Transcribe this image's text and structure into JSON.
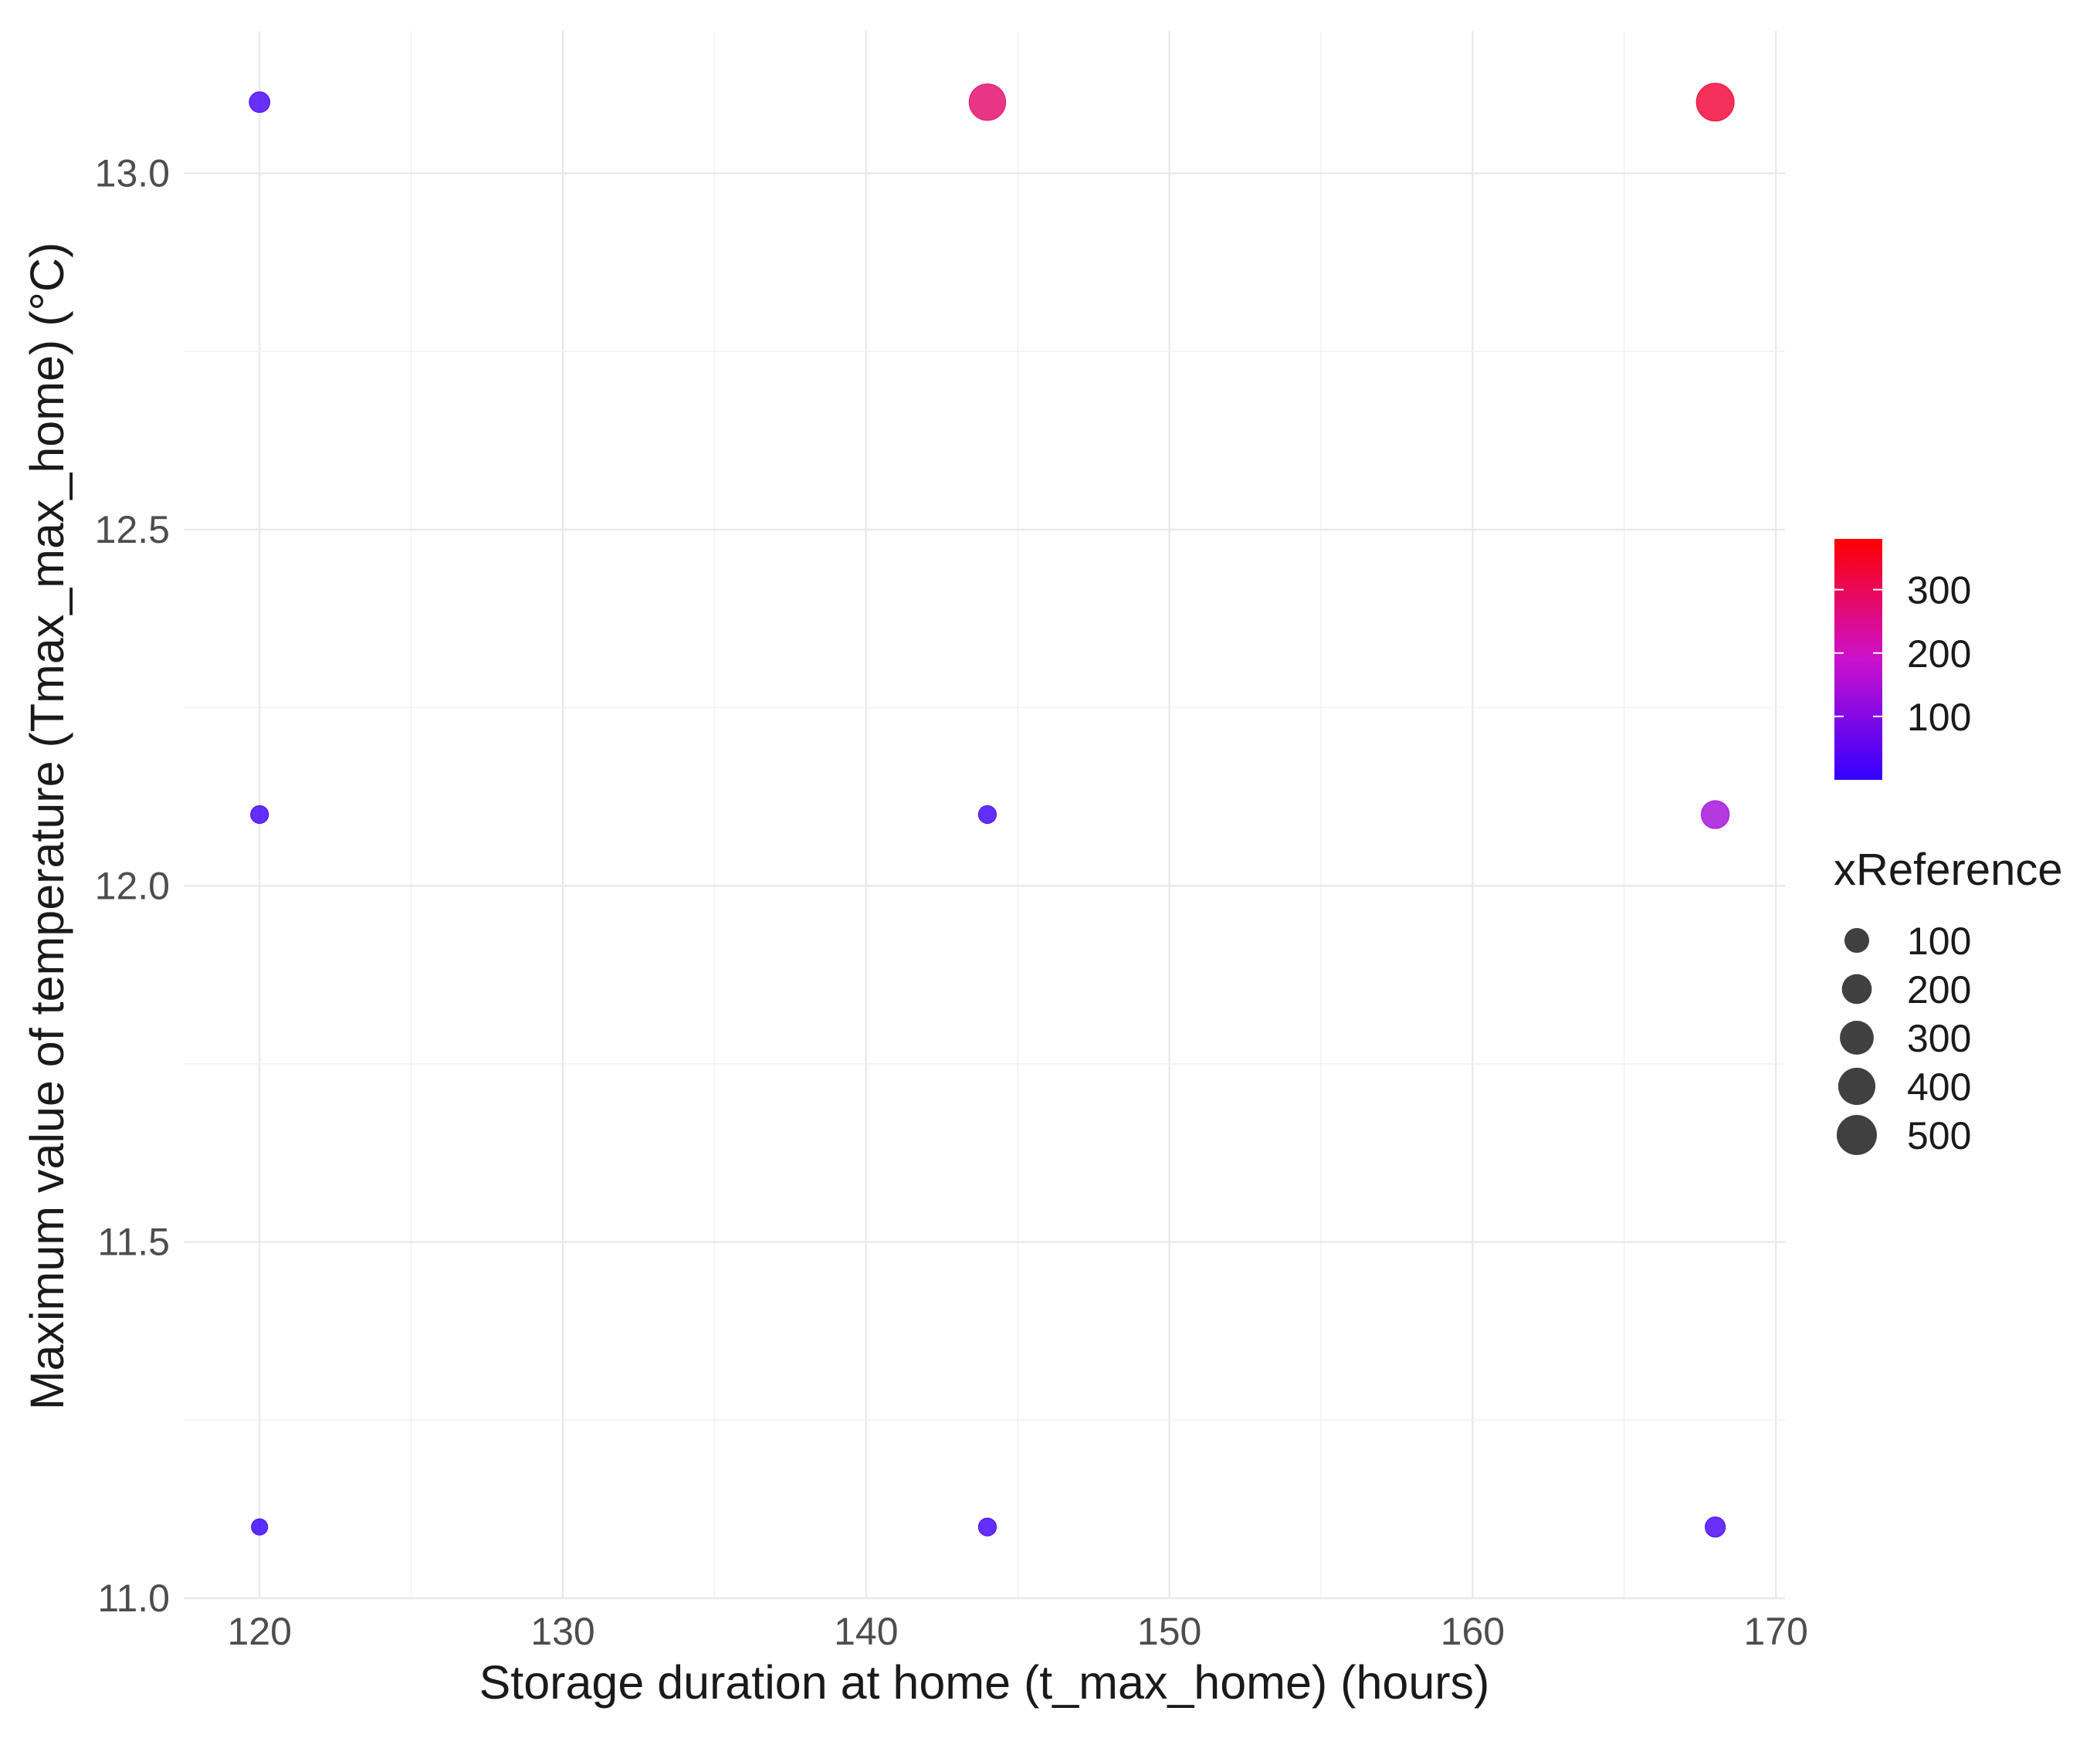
{
  "chart_data": {
    "type": "scatter",
    "title": "",
    "xlabel": "Storage duration at home (t_max_home) (hours)",
    "ylabel": "Maximum value of temperature (Tmax_max_home) (°C)",
    "xlim": [
      117.5,
      170.3
    ],
    "ylim": [
      11.0,
      13.2
    ],
    "x_ticks": [
      {
        "value": 120,
        "label": "120"
      },
      {
        "value": 130,
        "label": "130"
      },
      {
        "value": 140,
        "label": "140"
      },
      {
        "value": 150,
        "label": "150"
      },
      {
        "value": 160,
        "label": "160"
      },
      {
        "value": 170,
        "label": "170"
      }
    ],
    "y_ticks": [
      {
        "value": 11.0,
        "label": "11.0"
      },
      {
        "value": 11.5,
        "label": "11.5"
      },
      {
        "value": 12.0,
        "label": "12.0"
      },
      {
        "value": 12.5,
        "label": "12.5"
      },
      {
        "value": 13.0,
        "label": "13.0"
      }
    ],
    "grid": true,
    "points": [
      {
        "x": 120,
        "y": 13.1,
        "size": 45,
        "color": 25
      },
      {
        "x": 144,
        "y": 13.1,
        "size": 380,
        "color": 280
      },
      {
        "x": 168,
        "y": 13.1,
        "size": 420,
        "color": 330
      },
      {
        "x": 120,
        "y": 12.1,
        "size": 20,
        "color": 15
      },
      {
        "x": 144,
        "y": 12.1,
        "size": 20,
        "color": 18
      },
      {
        "x": 168,
        "y": 12.1,
        "size": 160,
        "color": 140
      },
      {
        "x": 120,
        "y": 11.1,
        "size": 10,
        "color": 5
      },
      {
        "x": 144,
        "y": 11.1,
        "size": 20,
        "color": 15
      },
      {
        "x": 168,
        "y": 11.1,
        "size": 40,
        "color": 25
      }
    ],
    "color_legend": {
      "title": "",
      "min": 0,
      "max": 380,
      "low_color": "#3300ff",
      "mid_color": "#cc11cc",
      "high_color": "#ff0000",
      "ticks": [
        {
          "value": 100,
          "label": "100"
        },
        {
          "value": 200,
          "label": "200"
        },
        {
          "value": 300,
          "label": "300"
        }
      ]
    },
    "size_legend": {
      "title": "xReference",
      "point_color": "#404040",
      "items": [
        {
          "value": 100,
          "label": "100"
        },
        {
          "value": 200,
          "label": "200"
        },
        {
          "value": 300,
          "label": "300"
        },
        {
          "value": 400,
          "label": "400"
        },
        {
          "value": 500,
          "label": "500"
        }
      ]
    },
    "legend_position": "right"
  }
}
